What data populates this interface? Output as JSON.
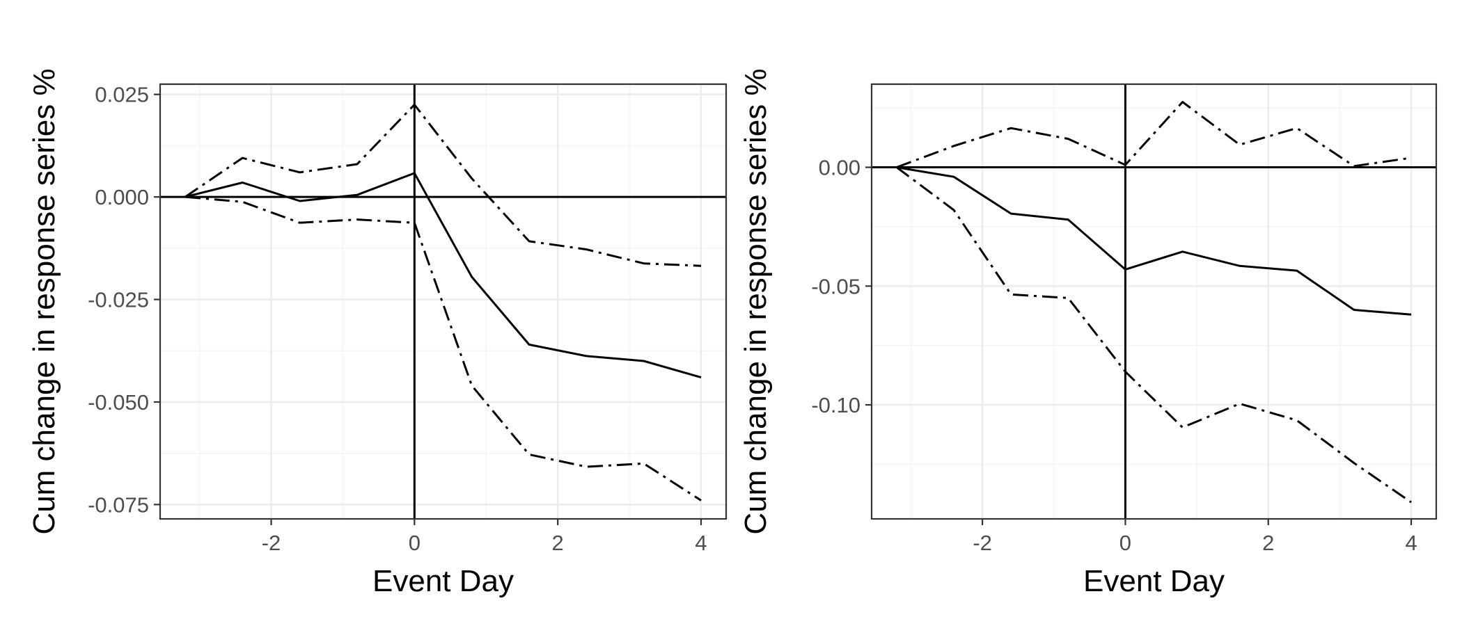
{
  "chart_data": [
    {
      "type": "line",
      "title": "",
      "xlabel": "Event Day",
      "ylabel": "Cum change in response series %",
      "xlim": [
        -3.55,
        4.35
      ],
      "ylim": [
        -0.0785,
        0.0275
      ],
      "x_ticks": [
        -2,
        0,
        2,
        4
      ],
      "x_tick_labels": [
        "-2",
        "0",
        "2",
        "4"
      ],
      "y_ticks": [
        -0.075,
        -0.05,
        -0.025,
        0,
        0.025
      ],
      "y_tick_labels": [
        "-0.075",
        "-0.050",
        "-0.025",
        "0.000",
        "0.025"
      ],
      "x_minor": [
        -3,
        -1,
        1,
        3
      ],
      "y_minor": [
        -0.0625,
        -0.0375,
        -0.0125,
        0.0125
      ],
      "reference_lines": {
        "x": 0,
        "y": 0
      },
      "grid": true,
      "x": [
        -3.2,
        -2.4,
        -1.6,
        -0.8,
        0,
        0.8,
        1.6,
        2.4,
        3.2,
        4.0
      ],
      "series": [
        {
          "style": "solid",
          "values": [
            0,
            0.0035,
            -0.001,
            0.0005,
            0.0058,
            -0.0195,
            -0.036,
            -0.0388,
            -0.04,
            -0.044
          ]
        },
        {
          "style": "dashdot",
          "values": [
            0,
            0.0095,
            0.006,
            0.008,
            0.0225,
            0.0045,
            -0.0108,
            -0.0128,
            -0.0162,
            -0.0168
          ]
        },
        {
          "style": "dashdot",
          "values": [
            0,
            -0.0012,
            -0.0063,
            -0.0055,
            -0.0063,
            -0.046,
            -0.0628,
            -0.0658,
            -0.065,
            -0.074
          ]
        }
      ]
    },
    {
      "type": "line",
      "title": "",
      "xlabel": "Event Day",
      "ylabel": "Cum change in response series %",
      "xlim": [
        -3.55,
        4.35
      ],
      "ylim": [
        -0.148,
        0.035
      ],
      "x_ticks": [
        -2,
        0,
        2,
        4
      ],
      "x_tick_labels": [
        "-2",
        "0",
        "2",
        "4"
      ],
      "y_ticks": [
        -0.1,
        -0.05,
        0
      ],
      "y_tick_labels": [
        "-0.10",
        "-0.05",
        "0.00"
      ],
      "x_minor": [
        -3,
        -1,
        1,
        3
      ],
      "y_minor": [
        -0.125,
        -0.075,
        -0.025,
        0.025
      ],
      "reference_lines": {
        "x": 0,
        "y": 0
      },
      "grid": true,
      "x": [
        -3.2,
        -2.4,
        -1.6,
        -0.8,
        0,
        0.8,
        1.6,
        2.4,
        3.2,
        4.0
      ],
      "series": [
        {
          "style": "solid",
          "values": [
            0,
            -0.004,
            -0.0195,
            -0.022,
            -0.043,
            -0.0355,
            -0.0415,
            -0.0435,
            -0.06,
            -0.062
          ]
        },
        {
          "style": "dashdot",
          "values": [
            0,
            0.009,
            0.0165,
            0.012,
            0.001,
            0.0275,
            0.0095,
            0.0165,
            0.0005,
            0.004
          ]
        },
        {
          "style": "dashdot",
          "values": [
            0,
            -0.018,
            -0.0535,
            -0.055,
            -0.086,
            -0.1095,
            -0.0995,
            -0.1065,
            -0.1245,
            -0.141
          ]
        }
      ]
    }
  ]
}
